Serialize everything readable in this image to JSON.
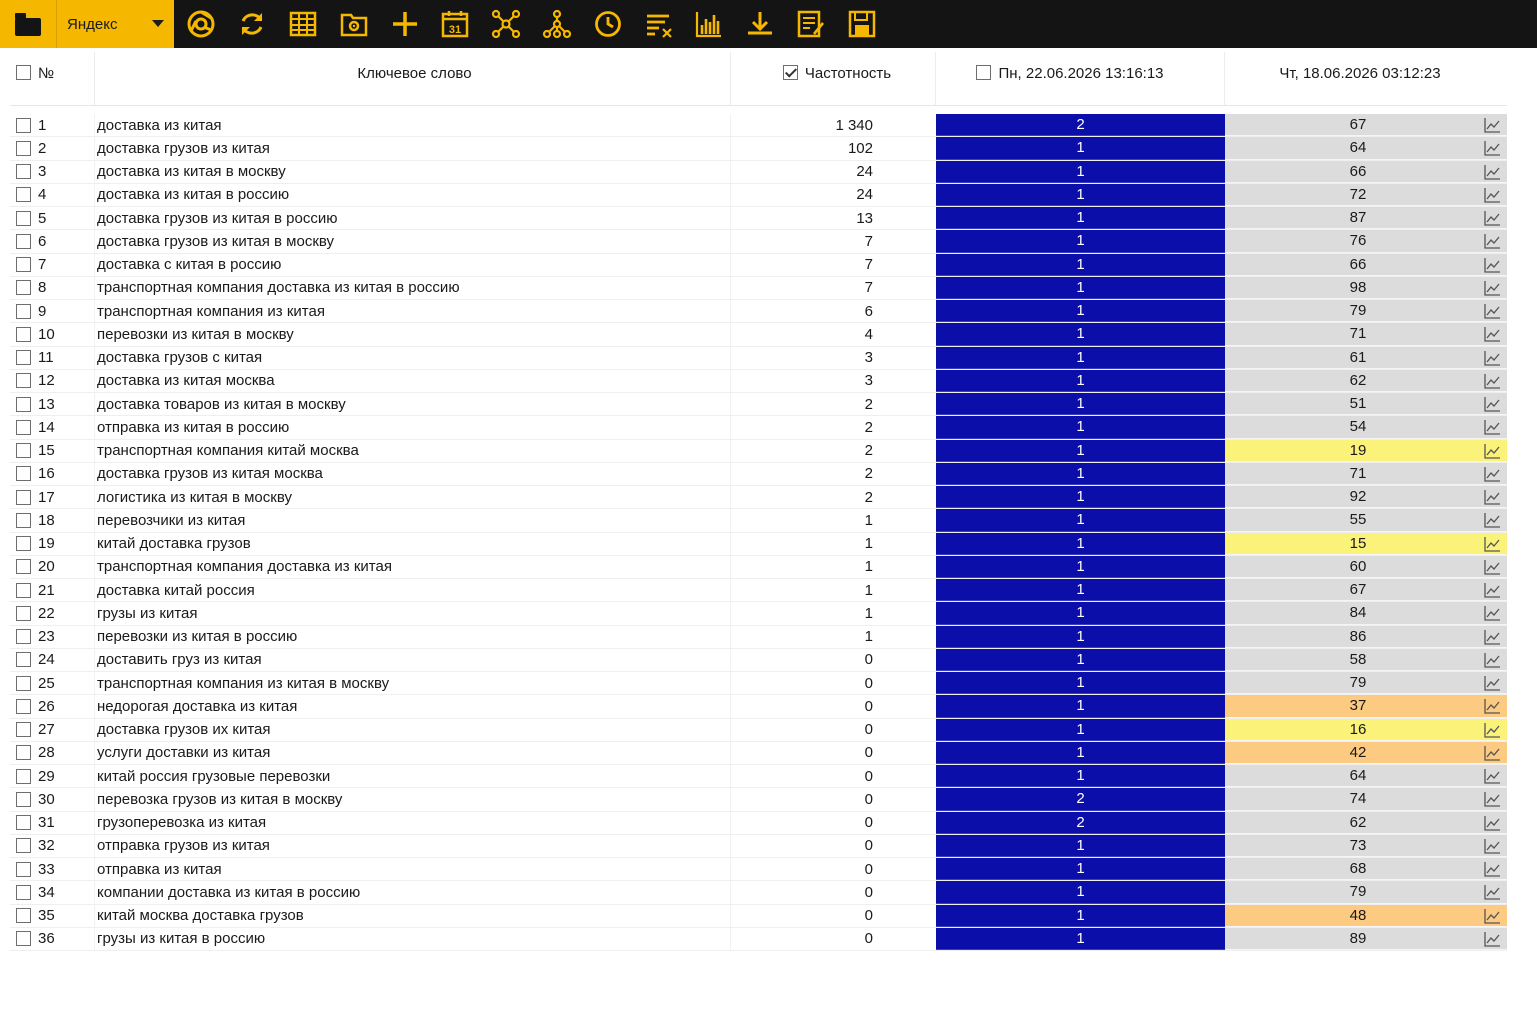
{
  "toolbar": {
    "engine": "Яндекс",
    "tools": [
      "chrome-icon",
      "refresh-icon",
      "table-icon",
      "settings-folder-icon",
      "add-icon",
      "calendar-icon",
      "network-icon",
      "hierarchy-icon",
      "clock-icon",
      "clear-filter-icon",
      "bar-chart-icon",
      "download-icon",
      "report-icon",
      "save-icon"
    ],
    "calendar_day": "31"
  },
  "colors": {
    "toolbar_bg": "#141414",
    "accent": "#f6b700",
    "position_cell": "#0b0ea8",
    "neutral_cell": "#dcdcdc",
    "yellow_cell": "#fbf27a",
    "orange_cell": "#fcca80"
  },
  "table": {
    "headers": {
      "num": "№",
      "keyword": "Ключевое слово",
      "frequency": "Частотность",
      "date1": "Пн, 22.06.2026 13:16:13",
      "date2": "Чт, 18.06.2026 03:12:23"
    },
    "rows": [
      {
        "n": "1",
        "kw": "доставка из китая",
        "freq": "1 340",
        "p1": "2",
        "p2": "67",
        "hl": ""
      },
      {
        "n": "2",
        "kw": "доставка грузов из китая",
        "freq": "102",
        "p1": "1",
        "p2": "64",
        "hl": ""
      },
      {
        "n": "3",
        "kw": "доставка из китая в москву",
        "freq": "24",
        "p1": "1",
        "p2": "66",
        "hl": ""
      },
      {
        "n": "4",
        "kw": "доставка из китая в россию",
        "freq": "24",
        "p1": "1",
        "p2": "72",
        "hl": ""
      },
      {
        "n": "5",
        "kw": "доставка грузов из китая в россию",
        "freq": "13",
        "p1": "1",
        "p2": "87",
        "hl": ""
      },
      {
        "n": "6",
        "kw": "доставка грузов из китая в москву",
        "freq": "7",
        "p1": "1",
        "p2": "76",
        "hl": ""
      },
      {
        "n": "7",
        "kw": "доставка с китая в россию",
        "freq": "7",
        "p1": "1",
        "p2": "66",
        "hl": ""
      },
      {
        "n": "8",
        "kw": "транспортная компания доставка из китая в россию",
        "freq": "7",
        "p1": "1",
        "p2": "98",
        "hl": ""
      },
      {
        "n": "9",
        "kw": "транспортная компания из китая",
        "freq": "6",
        "p1": "1",
        "p2": "79",
        "hl": ""
      },
      {
        "n": "10",
        "kw": "перевозки из китая в москву",
        "freq": "4",
        "p1": "1",
        "p2": "71",
        "hl": ""
      },
      {
        "n": "11",
        "kw": "доставка грузов с китая",
        "freq": "3",
        "p1": "1",
        "p2": "61",
        "hl": ""
      },
      {
        "n": "12",
        "kw": "доставка из китая москва",
        "freq": "3",
        "p1": "1",
        "p2": "62",
        "hl": ""
      },
      {
        "n": "13",
        "kw": "доставка товаров из китая в москву",
        "freq": "2",
        "p1": "1",
        "p2": "51",
        "hl": ""
      },
      {
        "n": "14",
        "kw": "отправка из китая в россию",
        "freq": "2",
        "p1": "1",
        "p2": "54",
        "hl": ""
      },
      {
        "n": "15",
        "kw": "транспортная компания китай москва",
        "freq": "2",
        "p1": "1",
        "p2": "19",
        "hl": "yellow"
      },
      {
        "n": "16",
        "kw": "доставка грузов из китая москва",
        "freq": "2",
        "p1": "1",
        "p2": "71",
        "hl": ""
      },
      {
        "n": "17",
        "kw": "логистика из китая в москву",
        "freq": "2",
        "p1": "1",
        "p2": "92",
        "hl": ""
      },
      {
        "n": "18",
        "kw": "перевозчики из китая",
        "freq": "1",
        "p1": "1",
        "p2": "55",
        "hl": ""
      },
      {
        "n": "19",
        "kw": "китай доставка грузов",
        "freq": "1",
        "p1": "1",
        "p2": "15",
        "hl": "yellow"
      },
      {
        "n": "20",
        "kw": "транспортная компания доставка из китая",
        "freq": "1",
        "p1": "1",
        "p2": "60",
        "hl": ""
      },
      {
        "n": "21",
        "kw": "доставка китай россия",
        "freq": "1",
        "p1": "1",
        "p2": "67",
        "hl": ""
      },
      {
        "n": "22",
        "kw": "грузы из китая",
        "freq": "1",
        "p1": "1",
        "p2": "84",
        "hl": ""
      },
      {
        "n": "23",
        "kw": "перевозки из китая в россию",
        "freq": "1",
        "p1": "1",
        "p2": "86",
        "hl": ""
      },
      {
        "n": "24",
        "kw": "доставить груз из китая",
        "freq": "0",
        "p1": "1",
        "p2": "58",
        "hl": ""
      },
      {
        "n": "25",
        "kw": "транспортная компания из китая в москву",
        "freq": "0",
        "p1": "1",
        "p2": "79",
        "hl": ""
      },
      {
        "n": "26",
        "kw": "недорогая доставка из китая",
        "freq": "0",
        "p1": "1",
        "p2": "37",
        "hl": "orange"
      },
      {
        "n": "27",
        "kw": "доставка грузов их китая",
        "freq": "0",
        "p1": "1",
        "p2": "16",
        "hl": "yellow"
      },
      {
        "n": "28",
        "kw": "услуги доставки из китая",
        "freq": "0",
        "p1": "1",
        "p2": "42",
        "hl": "orange"
      },
      {
        "n": "29",
        "kw": "китай россия грузовые перевозки",
        "freq": "0",
        "p1": "1",
        "p2": "64",
        "hl": ""
      },
      {
        "n": "30",
        "kw": "перевозка грузов из китая в москву",
        "freq": "0",
        "p1": "2",
        "p2": "74",
        "hl": ""
      },
      {
        "n": "31",
        "kw": "грузоперевозка из китая",
        "freq": "0",
        "p1": "2",
        "p2": "62",
        "hl": ""
      },
      {
        "n": "32",
        "kw": "отправка грузов из китая",
        "freq": "0",
        "p1": "1",
        "p2": "73",
        "hl": ""
      },
      {
        "n": "33",
        "kw": "отправка из китая",
        "freq": "0",
        "p1": "1",
        "p2": "68",
        "hl": ""
      },
      {
        "n": "34",
        "kw": "компании доставка из китая в россию",
        "freq": "0",
        "p1": "1",
        "p2": "79",
        "hl": ""
      },
      {
        "n": "35",
        "kw": "китай москва доставка грузов",
        "freq": "0",
        "p1": "1",
        "p2": "48",
        "hl": "orange"
      },
      {
        "n": "36",
        "kw": "грузы из китая в россию",
        "freq": "0",
        "p1": "1",
        "p2": "89",
        "hl": ""
      }
    ]
  }
}
